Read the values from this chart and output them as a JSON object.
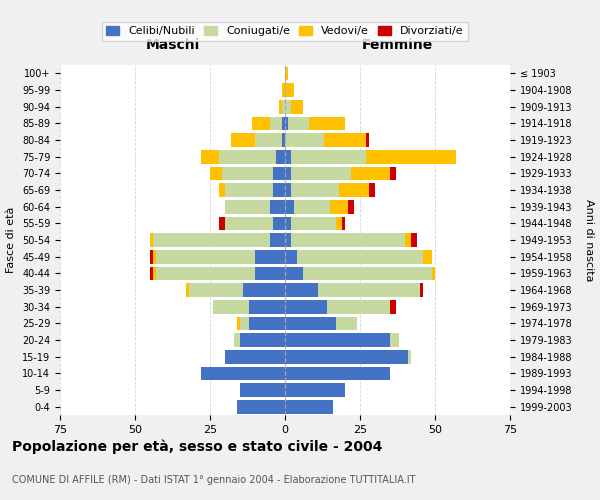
{
  "age_groups": [
    "0-4",
    "5-9",
    "10-14",
    "15-19",
    "20-24",
    "25-29",
    "30-34",
    "35-39",
    "40-44",
    "45-49",
    "50-54",
    "55-59",
    "60-64",
    "65-69",
    "70-74",
    "75-79",
    "80-84",
    "85-89",
    "90-94",
    "95-99",
    "100+"
  ],
  "birth_years": [
    "1999-2003",
    "1994-1998",
    "1989-1993",
    "1984-1988",
    "1979-1983",
    "1974-1978",
    "1969-1973",
    "1964-1968",
    "1959-1963",
    "1954-1958",
    "1949-1953",
    "1944-1948",
    "1939-1943",
    "1934-1938",
    "1929-1933",
    "1924-1928",
    "1919-1923",
    "1914-1918",
    "1909-1913",
    "1904-1908",
    "≤ 1903"
  ],
  "males": {
    "celibe": [
      16,
      15,
      28,
      20,
      15,
      12,
      12,
      14,
      10,
      10,
      5,
      4,
      5,
      4,
      4,
      3,
      1,
      1,
      0,
      0,
      0
    ],
    "coniugato": [
      0,
      0,
      0,
      0,
      2,
      3,
      12,
      18,
      33,
      33,
      39,
      16,
      15,
      16,
      17,
      19,
      9,
      4,
      1,
      0,
      0
    ],
    "vedovo": [
      0,
      0,
      0,
      0,
      0,
      1,
      0,
      1,
      1,
      1,
      1,
      0,
      0,
      2,
      4,
      6,
      8,
      6,
      1,
      1,
      0
    ],
    "divorziato": [
      0,
      0,
      0,
      0,
      0,
      0,
      0,
      0,
      1,
      1,
      0,
      2,
      0,
      0,
      0,
      0,
      0,
      0,
      0,
      0,
      0
    ]
  },
  "females": {
    "nubile": [
      16,
      20,
      35,
      41,
      35,
      17,
      14,
      11,
      6,
      4,
      2,
      2,
      3,
      2,
      2,
      2,
      0,
      1,
      0,
      0,
      0
    ],
    "coniugata": [
      0,
      0,
      0,
      1,
      3,
      7,
      21,
      34,
      43,
      42,
      38,
      15,
      12,
      16,
      20,
      25,
      13,
      7,
      2,
      0,
      0
    ],
    "vedova": [
      0,
      0,
      0,
      0,
      0,
      0,
      0,
      0,
      1,
      3,
      2,
      2,
      6,
      10,
      13,
      30,
      14,
      12,
      4,
      3,
      1
    ],
    "divorziata": [
      0,
      0,
      0,
      0,
      0,
      0,
      2,
      1,
      0,
      0,
      2,
      1,
      2,
      2,
      2,
      0,
      1,
      0,
      0,
      0,
      0
    ]
  },
  "colors": {
    "celibe_nubile": "#4472c4",
    "coniugato": "#c5d9a0",
    "vedovo": "#ffc000",
    "divorziato": "#cc0000"
  },
  "title": "Popolazione per età, sesso e stato civile - 2004",
  "subtitle": "COMUNE DI AFFILE (RM) - Dati ISTAT 1° gennaio 2004 - Elaborazione TUTTITALIA.IT",
  "xlabel_left": "Maschi",
  "xlabel_right": "Femmine",
  "ylabel_left": "Fasce di età",
  "ylabel_right": "Anni di nascita",
  "xlim": 75,
  "legend_labels": [
    "Celibi/Nubili",
    "Coniugati/e",
    "Vedovi/e",
    "Divorziati/e"
  ],
  "bg_color": "#f0f0f0",
  "plot_bg_color": "#ffffff"
}
